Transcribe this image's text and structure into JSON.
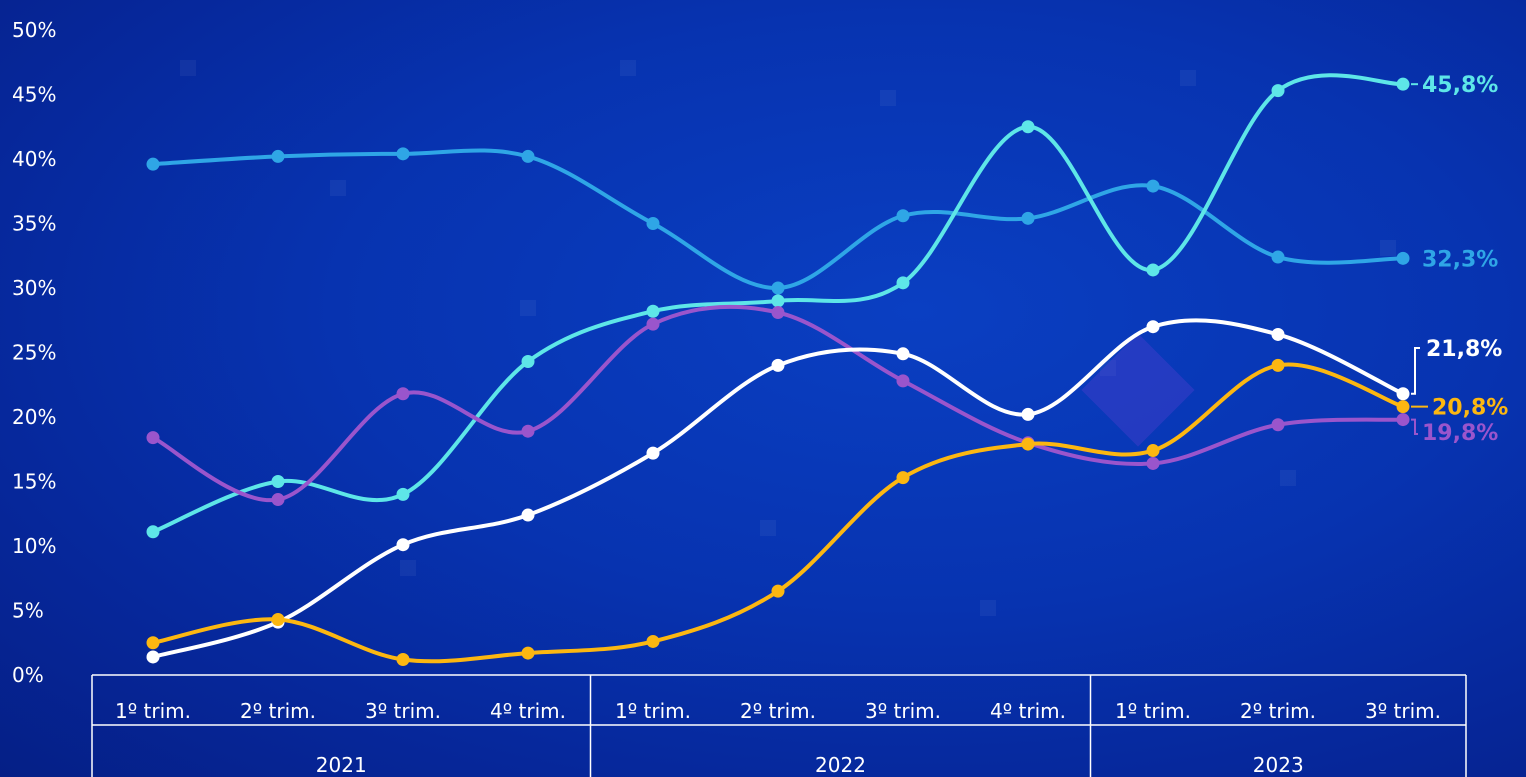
{
  "chart_data": {
    "type": "line",
    "y_ticks": [
      "0%",
      "5%",
      "10%",
      "15%",
      "20%",
      "25%",
      "30%",
      "35%",
      "40%",
      "45%",
      "50%"
    ],
    "ylim": [
      0,
      50
    ],
    "categories": [
      "1º trim.",
      "2º trim.",
      "3º trim.",
      "4º trim.",
      "1º trim.",
      "2º trim.",
      "3º trim.",
      "4º trim.",
      "1º trim.",
      "2º trim.",
      "3º trim."
    ],
    "groups": [
      {
        "label": "2021",
        "span": 4
      },
      {
        "label": "2022",
        "span": 4
      },
      {
        "label": "2023",
        "span": 3
      }
    ],
    "series": [
      {
        "color": "#2fa6e6",
        "values": [
          39.6,
          40.2,
          40.4,
          40.2,
          35.0,
          30.0,
          35.6,
          35.4,
          37.9,
          32.4,
          32.3
        ],
        "end_label": "32,3%"
      },
      {
        "color": "#5ee6e8",
        "values": [
          11.1,
          15.0,
          14.0,
          24.3,
          28.2,
          29.0,
          30.4,
          42.5,
          31.4,
          45.3,
          45.8
        ],
        "end_label": "45,8%"
      },
      {
        "color": "#9a55cc",
        "values": [
          18.4,
          13.6,
          21.8,
          18.9,
          27.2,
          28.1,
          22.8,
          18.0,
          16.4,
          19.4,
          19.8
        ],
        "end_label": "19,8%"
      },
      {
        "color": "#ffffff",
        "values": [
          1.4,
          4.1,
          10.1,
          12.4,
          17.2,
          24.0,
          24.9,
          20.2,
          27.0,
          26.4,
          21.8
        ],
        "end_label": "21,8%"
      },
      {
        "color": "#fcb711",
        "values": [
          2.5,
          4.3,
          1.2,
          1.7,
          2.6,
          6.5,
          15.3,
          17.9,
          17.4,
          24.0,
          20.8
        ],
        "end_label": "20,8%"
      }
    ],
    "grid": false,
    "legend": "none"
  }
}
